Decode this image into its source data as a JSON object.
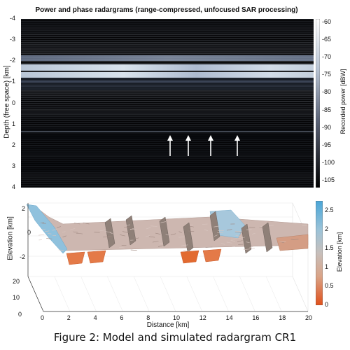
{
  "caption": "Figure 2: Model and simulated radargram CR1",
  "chart_data": [
    {
      "type": "heatmap",
      "title": "Power and phase radargrams (range-compressed, unfocused SAR processing)",
      "ylabel": "Depth (free space) [km]",
      "ylim": [
        -4,
        4
      ],
      "y_ticks": [
        "-4",
        "-3",
        "-2",
        "-1",
        "0",
        "1",
        "2",
        "3",
        "4"
      ],
      "colorbar": {
        "label": "Recorded power [dBW]",
        "range": [
          -107,
          -59
        ],
        "ticks": [
          "-60",
          "-65",
          "-70",
          "-75",
          "-80",
          "-85",
          "-90",
          "-95",
          "-100",
          "-105"
        ]
      },
      "bright_bands_depth_km": [
        -1.9,
        -1.5,
        -1.1
      ],
      "arrows_count": 4
    },
    {
      "type": "surface",
      "xlabel": "Distance [km]",
      "ylabel": "Elevation [km]",
      "xlim": [
        0,
        20
      ],
      "x_ticks": [
        "0",
        "2",
        "4",
        "6",
        "8",
        "10",
        "12",
        "14",
        "16",
        "18",
        "20"
      ],
      "y_ticks": [
        "20",
        "10",
        "0"
      ],
      "z_ticks": [
        "2",
        "0",
        "-2"
      ],
      "colorbar": {
        "label": "Elevation [km]",
        "range": [
          0,
          2.75
        ],
        "ticks": [
          "2.5",
          "2",
          "1.5",
          "1",
          "0.5",
          "0"
        ]
      }
    }
  ]
}
